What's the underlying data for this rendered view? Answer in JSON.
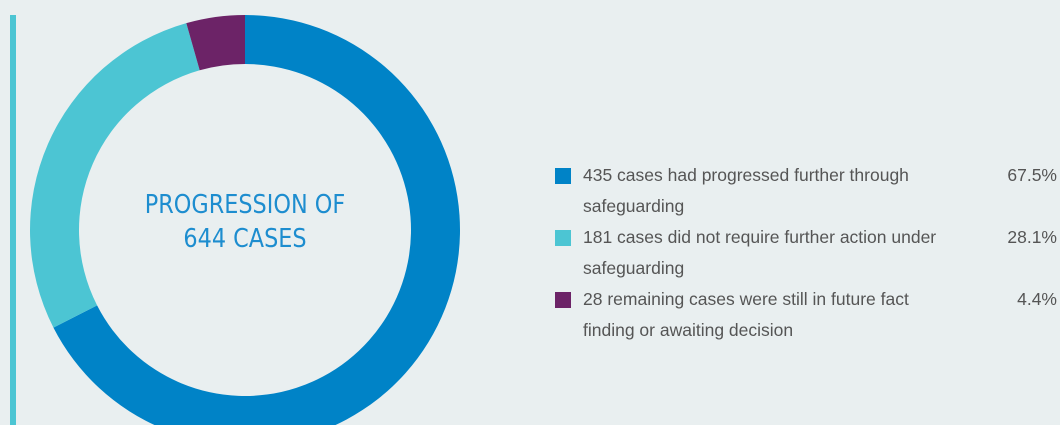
{
  "chart_data": {
    "type": "pie",
    "title": "PROGRESSION OF 644 CASES",
    "categories": [
      "435 cases had progressed further through safeguarding",
      "181 cases did not require further action under safeguarding",
      "28 remaining cases were still in future fact finding or awaiting decision"
    ],
    "values": [
      67.5,
      28.1,
      4.4
    ],
    "value_labels": [
      "67.5%",
      "28.1%",
      "4.4%"
    ],
    "colors": [
      "#0083c7",
      "#4cc5d3",
      "#6c2367"
    ],
    "donut": true,
    "legend": "right"
  }
}
